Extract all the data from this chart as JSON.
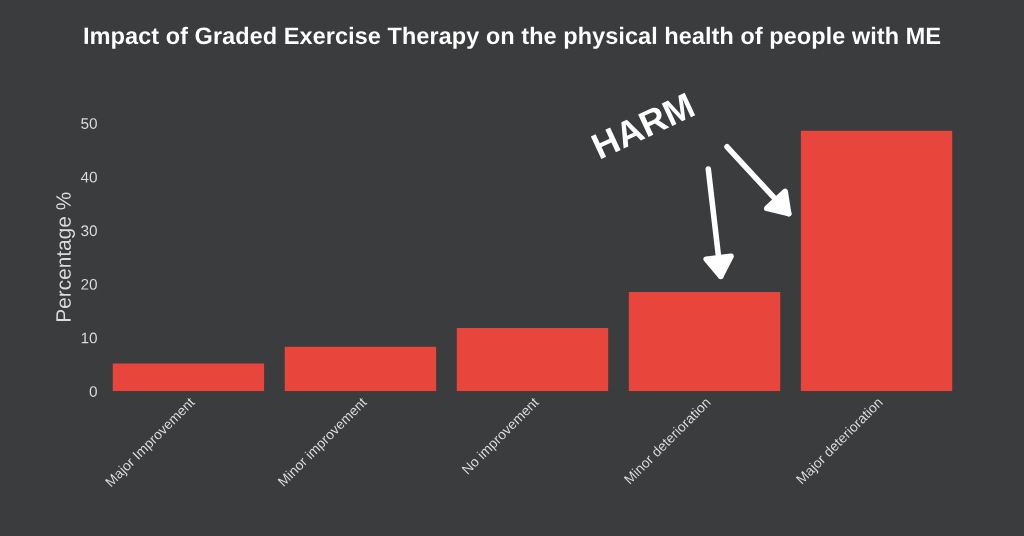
{
  "chart_data": {
    "type": "bar",
    "title": "Impact of Graded Exercise Therapy on the physical health of people with ME",
    "ylabel": "Percentage %",
    "categories": [
      "Major Improvement",
      "Minor improvement",
      "No improvement",
      "Minor deterioration",
      "Major deterioration"
    ],
    "values": [
      5.2,
      8.3,
      11.8,
      18.5,
      48.6
    ],
    "color": "#e8453c",
    "ylim": [
      0,
      50
    ],
    "yticks": [
      0,
      10,
      20,
      30,
      40,
      50
    ],
    "grid": false,
    "annotations": [
      "HARM"
    ]
  }
}
